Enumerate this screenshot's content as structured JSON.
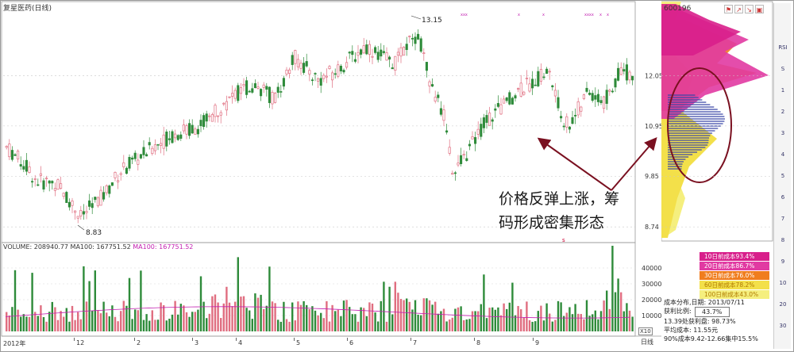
{
  "window": {
    "title": "复星医药(日线)",
    "stock_code": "600196"
  },
  "price_chart": {
    "y_axis": {
      "ticks": [
        "12.05",
        "10.95",
        "9.85",
        "8.74"
      ]
    },
    "high_label": "13.15",
    "low_label": "8.83",
    "x_axis": {
      "labels": [
        "2012年",
        "12",
        "2",
        "3",
        "4",
        "5",
        "6",
        "7",
        "8",
        "9"
      ]
    },
    "annotation_lines": [
      "价格反弹上涨，筹",
      "码形成密集形态"
    ],
    "markers": [
      "xxx",
      "x",
      "x",
      "xxxx",
      "x",
      "x"
    ],
    "marker_s": "s"
  },
  "volume_chart": {
    "legend_vol": "VOLUME: 208940.77",
    "legend_ma": "MA100: 167751.52",
    "legend_ma2": "MA100: 167751.52",
    "y_axis": {
      "ticks": [
        "40000",
        "30000",
        "20000",
        "10000"
      ]
    },
    "unit_label": "X10"
  },
  "chip_distribution": {
    "legend": [
      {
        "label": "10日前成本93.4%",
        "color": "#d81f8b"
      },
      {
        "label": "20日前成本86.7%",
        "color": "#e13aa2"
      },
      {
        "label": "30日前成本76.0%",
        "color": "#f07d1e"
      },
      {
        "label": "60日前成本78.2%",
        "color": "#f3e04a"
      },
      {
        "label": "100日前成本43.0%",
        "color": "#f5ef7e"
      }
    ],
    "date_row": "成本分布,日期: 2013/07/11",
    "profit_ratio_label": "获利比例:",
    "profit_ratio": "43.7%",
    "profit_line": "13.39处获利盘: 98.73%",
    "avg_cost": "平均成本: 11.55元",
    "concentration": "90%成本9.42-12.66集中15.5%"
  },
  "tabs": {
    "daily": "日线"
  },
  "toolbar": {
    "items": [
      "RSI",
      "S",
      "1",
      "2",
      "3",
      "4",
      "5",
      "6",
      "7",
      "8",
      "9",
      "10",
      "20",
      "30"
    ]
  },
  "colors": {
    "up": "#e06e80",
    "down": "#2e8b3a",
    "ma": "#c21fb0",
    "annotation": "#7a1020"
  }
}
